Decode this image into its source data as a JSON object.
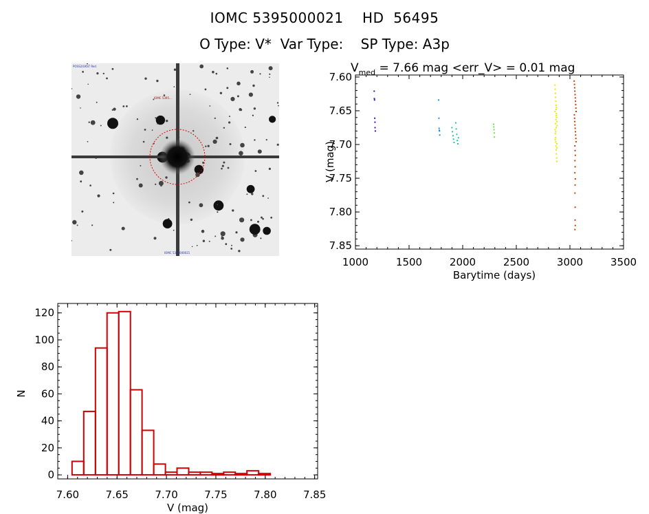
{
  "header": {
    "title_line1": "IOMC 5395000021    HD  56495",
    "title_line2": "O Type: V*  Var Type:    SP Type: A3p"
  },
  "thumbnail": {
    "corner_labels": [
      "POSS2/UKST Red",
      "",
      "",
      "IOMC 5395000021"
    ],
    "circle_color": "#dd0000",
    "target_marker_label": "IOMC 5395..."
  },
  "chart_data": [
    {
      "type": "scatter",
      "title_prefix": "V",
      "title_sub": "med",
      "title_rest": " = 7.66 mag <err_V> = 0.01 mag",
      "xlabel": "Barytime (days)",
      "ylabel": "V (mag)",
      "xlim": [
        1000,
        3500
      ],
      "ylim": [
        7.855,
        7.597
      ],
      "y_inverted": true,
      "xticks": [
        1000,
        1500,
        2000,
        2500,
        3000,
        3500
      ],
      "yticks": [
        7.6,
        7.65,
        7.7,
        7.75,
        7.8,
        7.85
      ],
      "ytick_labels": [
        "7.60",
        "7.65",
        "7.70",
        "7.75",
        "7.80",
        "7.85"
      ],
      "series": [
        {
          "color": "#3a0fb0",
          "points": [
            [
              1175,
              7.621
            ],
            [
              1176,
              7.632
            ],
            [
              1178,
              7.634
            ],
            [
              1180,
              7.661
            ],
            [
              1182,
              7.667
            ],
            [
              1183,
              7.675
            ],
            [
              1185,
              7.68
            ]
          ]
        },
        {
          "color": "#1f8fd8",
          "points": [
            [
              1775,
              7.634
            ],
            [
              1778,
              7.661
            ],
            [
              1780,
              7.676
            ],
            [
              1782,
              7.679
            ],
            [
              1784,
              7.68
            ],
            [
              1786,
              7.686
            ]
          ]
        },
        {
          "color": "#20c0a0",
          "points": [
            [
              1900,
              7.675
            ],
            [
              1905,
              7.681
            ],
            [
              1910,
              7.687
            ],
            [
              1915,
              7.692
            ],
            [
              1920,
              7.697
            ],
            [
              1935,
              7.668
            ],
            [
              1940,
              7.677
            ],
            [
              1945,
              7.685
            ],
            [
              1950,
              7.694
            ],
            [
              1955,
              7.699
            ],
            [
              1960,
              7.69
            ]
          ]
        },
        {
          "color": "#6de040",
          "points": [
            [
              2288,
              7.67
            ],
            [
              2290,
              7.674
            ],
            [
              2292,
              7.678
            ],
            [
              2294,
              7.683
            ],
            [
              2296,
              7.689
            ]
          ]
        },
        {
          "color": "#e8e800",
          "points": [
            [
              2860,
              7.612
            ],
            [
              2862,
              7.618
            ],
            [
              2864,
              7.624
            ],
            [
              2866,
              7.63
            ],
            [
              2868,
              7.636
            ],
            [
              2870,
              7.642
            ],
            [
              2872,
              7.648
            ],
            [
              2874,
              7.654
            ],
            [
              2876,
              7.66
            ],
            [
              2878,
              7.666
            ],
            [
              2880,
              7.672
            ],
            [
              2862,
              7.678
            ],
            [
              2864,
              7.684
            ],
            [
              2866,
              7.69
            ],
            [
              2868,
              7.696
            ],
            [
              2870,
              7.702
            ],
            [
              2872,
              7.708
            ],
            [
              2874,
              7.714
            ],
            [
              2876,
              7.72
            ],
            [
              2878,
              7.725
            ],
            [
              2873,
              7.657
            ],
            [
              2869,
              7.663
            ],
            [
              2865,
              7.669
            ],
            [
              2871,
              7.675
            ],
            [
              2867,
              7.681
            ],
            [
              2863,
              7.693
            ],
            [
              2877,
              7.699
            ],
            [
              2875,
              7.645
            ],
            [
              2861,
              7.651
            ],
            [
              2879,
              7.705
            ]
          ]
        },
        {
          "color": "#c83c00",
          "points": [
            [
              3040,
              7.606
            ],
            [
              3042,
              7.611
            ],
            [
              3044,
              7.616
            ],
            [
              3046,
              7.621
            ],
            [
              3048,
              7.626
            ],
            [
              3050,
              7.631
            ],
            [
              3052,
              7.636
            ],
            [
              3054,
              7.641
            ],
            [
              3056,
              7.646
            ],
            [
              3058,
              7.651
            ],
            [
              3041,
              7.656
            ],
            [
              3043,
              7.661
            ],
            [
              3045,
              7.666
            ],
            [
              3047,
              7.671
            ],
            [
              3049,
              7.676
            ],
            [
              3051,
              7.681
            ],
            [
              3053,
              7.686
            ],
            [
              3055,
              7.691
            ],
            [
              3057,
              7.696
            ],
            [
              3046,
              7.702
            ],
            [
              3048,
              7.709
            ],
            [
              3050,
              7.716
            ],
            [
              3047,
              7.724
            ],
            [
              3049,
              7.733
            ],
            [
              3046,
              7.742
            ],
            [
              3050,
              7.751
            ],
            [
              3048,
              7.76
            ],
            [
              3047,
              7.772
            ],
            [
              3049,
              7.793
            ],
            [
              3048,
              7.812
            ],
            [
              3050,
              7.82
            ],
            [
              3047,
              7.826
            ]
          ]
        }
      ]
    },
    {
      "type": "bar",
      "subtype": "histogram",
      "xlabel": "V (mag)",
      "ylabel": "N",
      "xlim": [
        7.59,
        7.853
      ],
      "ylim": [
        -3,
        127
      ],
      "xticks": [
        7.6,
        7.65,
        7.7,
        7.75,
        7.8,
        7.85
      ],
      "xtick_labels": [
        "7.60",
        "7.65",
        "7.70",
        "7.75",
        "7.80",
        "7.85"
      ],
      "yticks": [
        0,
        20,
        40,
        60,
        80,
        100,
        120
      ],
      "bin_width": 0.0118,
      "bin_start": 7.6045,
      "values": [
        10,
        47,
        94,
        120,
        121,
        63,
        33,
        8,
        2,
        5,
        2,
        2,
        1,
        2,
        1,
        3,
        1
      ],
      "bar_color": "#cc0000"
    }
  ]
}
